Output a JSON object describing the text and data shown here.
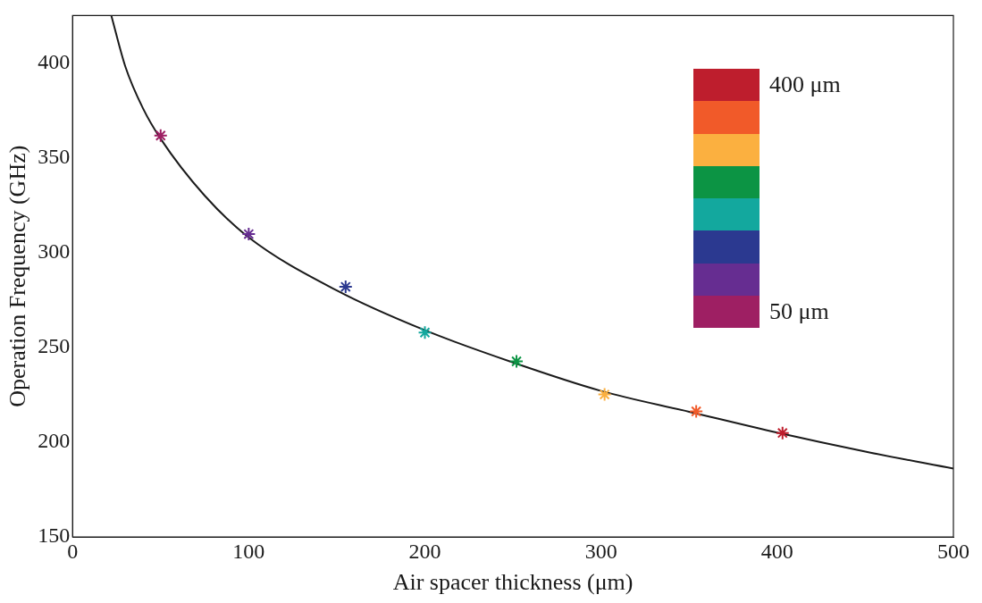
{
  "chart_data": {
    "type": "scatter",
    "xlabel": "Air spacer thickness (μm)",
    "ylabel": "Operation Frequency (GHz)",
    "xlim": [
      0,
      500
    ],
    "ylim": [
      150,
      425
    ],
    "xticks": [
      0,
      100,
      200,
      300,
      400,
      500
    ],
    "yticks": [
      150,
      200,
      250,
      300,
      350,
      400
    ],
    "grid": false,
    "legend": false,
    "marker": "cross",
    "annotations": [
      "400 μm",
      "50 μm"
    ],
    "series": [
      {
        "x": [
          50,
          100,
          155,
          200,
          252,
          302,
          354,
          403
        ],
        "values": [
          361.7,
          309.7,
          281.9,
          257.8,
          242.6,
          225.1,
          216.2,
          204.8
        ],
        "colors": [
          "#9e1f63",
          "#662d91",
          "#2b3990",
          "#13a89e",
          "#0c9444",
          "#fbb040",
          "#f15a29",
          "#be1e2d"
        ]
      },
      {
        "type": "line",
        "color": "#1a1a1a",
        "marker": "none",
        "x": [
          22,
          30,
          40,
          50,
          75,
          100,
          150,
          200,
          250,
          300,
          350,
          400,
          450,
          500
        ],
        "values": [
          425,
          398,
          376,
          360,
          330,
          308,
          280,
          259,
          242,
          227,
          216,
          205,
          195,
          186
        ]
      }
    ]
  }
}
